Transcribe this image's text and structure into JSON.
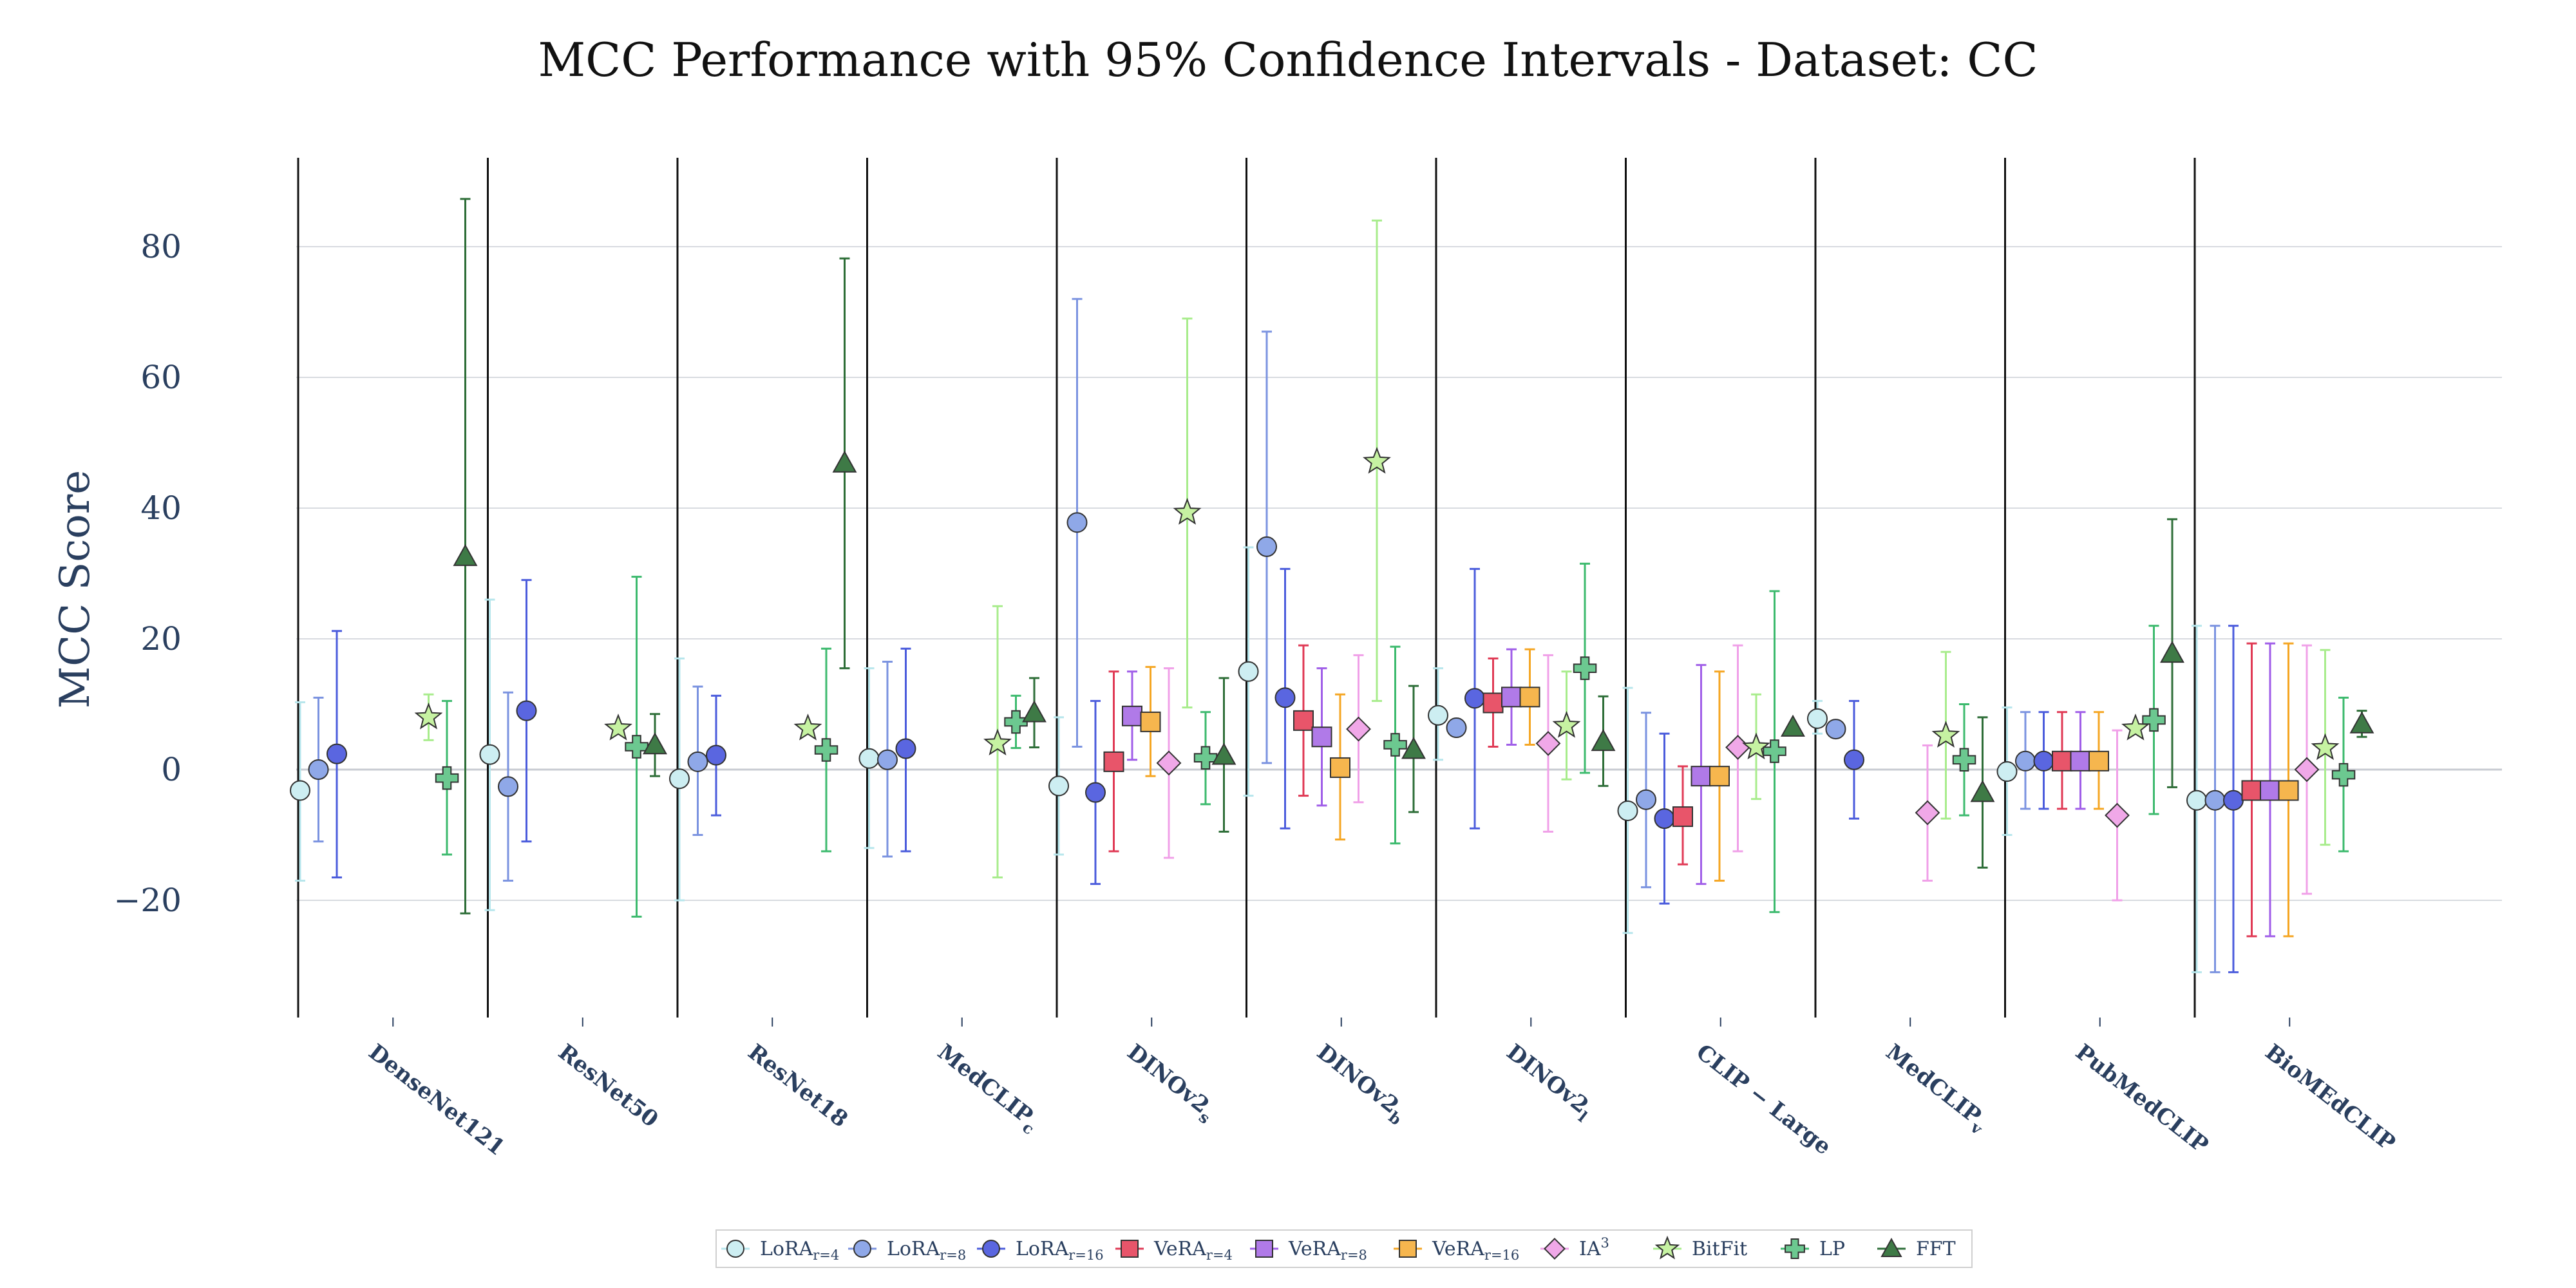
{
  "chart_data": {
    "type": "scatter",
    "title": "MCC Performance with 95% Confidence Intervals - Dataset: CC",
    "xlabel": "",
    "ylabel": "MCC Score",
    "ylim": [
      -38,
      94
    ],
    "yticks": [
      -20,
      0,
      20,
      40,
      60,
      80
    ],
    "ytick_labels": [
      "−20",
      "0",
      "20",
      "40",
      "60",
      "80"
    ],
    "grid": true,
    "legend_position": "bottom",
    "categories": [
      "DenseNet121",
      "ResNet50",
      "ResNet18",
      "MedCLIP",
      "DINOv2",
      "DINOv2",
      "DINOv2",
      "CLIP − Large",
      "MedCLIP",
      "PubMedCLIP",
      "BioMEdCLIP"
    ],
    "category_subscripts": [
      "",
      "",
      "",
      "c",
      "s",
      "b",
      "l",
      "",
      "v",
      "",
      ""
    ],
    "series": [
      {
        "name": "LoRA",
        "sub": "r=4",
        "sup": "",
        "color": "#cdeef2",
        "edge": "#333333",
        "ci_color": "#b7e6ec",
        "marker": "circle",
        "points": [
          {
            "cat": 0,
            "value": -3.2,
            "low": -17,
            "high": 10.3
          },
          {
            "cat": 1,
            "value": 2.3,
            "low": -21.5,
            "high": 26
          },
          {
            "cat": 2,
            "value": -1.4,
            "low": -20,
            "high": 17
          },
          {
            "cat": 3,
            "value": 1.7,
            "low": -12,
            "high": 15.5
          },
          {
            "cat": 4,
            "value": -2.5,
            "low": -13,
            "high": 8
          },
          {
            "cat": 5,
            "value": 15,
            "low": -4,
            "high": 34
          },
          {
            "cat": 6,
            "value": 8.3,
            "low": 1.5,
            "high": 15.5
          },
          {
            "cat": 7,
            "value": -6.3,
            "low": -25,
            "high": 12.5
          },
          {
            "cat": 8,
            "value": 7.8,
            "low": 5.5,
            "high": 10.5
          },
          {
            "cat": 9,
            "value": -0.3,
            "low": -10,
            "high": 9.5
          },
          {
            "cat": 10,
            "value": -4.7,
            "low": -31,
            "high": 22
          }
        ]
      },
      {
        "name": "LoRA",
        "sub": "r=8",
        "sup": "",
        "color": "#8fa8e8",
        "edge": "#333333",
        "ci_color": "#7b93e0",
        "marker": "circle",
        "points": [
          {
            "cat": 0,
            "value": 0,
            "low": -11,
            "high": 11
          },
          {
            "cat": 1,
            "value": -2.6,
            "low": -17,
            "high": 11.8
          },
          {
            "cat": 2,
            "value": 1.2,
            "low": -10,
            "high": 12.7
          },
          {
            "cat": 3,
            "value": 1.5,
            "low": -13.3,
            "high": 16.5
          },
          {
            "cat": 4,
            "value": 37.8,
            "low": 3.5,
            "high": 72
          },
          {
            "cat": 5,
            "value": 34.1,
            "low": 1,
            "high": 67
          },
          {
            "cat": 6,
            "value": 6.4,
            "low": 6.4,
            "high": 6.4
          },
          {
            "cat": 7,
            "value": -4.6,
            "low": -18,
            "high": 8.7
          },
          {
            "cat": 8,
            "value": 6.2,
            "low": 6.2,
            "high": 6.2
          },
          {
            "cat": 9,
            "value": 1.3,
            "low": -6,
            "high": 8.8
          },
          {
            "cat": 10,
            "value": -4.7,
            "low": -31,
            "high": 22
          }
        ]
      },
      {
        "name": "LoRA",
        "sub": "r=16",
        "sup": "",
        "color": "#5a66e0",
        "edge": "#333333",
        "ci_color": "#4b5cdc",
        "marker": "circle",
        "points": [
          {
            "cat": 0,
            "value": 2.4,
            "low": -16.5,
            "high": 21.2
          },
          {
            "cat": 1,
            "value": 9,
            "low": -11,
            "high": 29
          },
          {
            "cat": 2,
            "value": 2.2,
            "low": -7,
            "high": 11.3
          },
          {
            "cat": 3,
            "value": 3.2,
            "low": -12.5,
            "high": 18.5
          },
          {
            "cat": 4,
            "value": -3.5,
            "low": -17.5,
            "high": 10.5
          },
          {
            "cat": 5,
            "value": 11,
            "low": -9,
            "high": 30.7
          },
          {
            "cat": 6,
            "value": 10.9,
            "low": -9,
            "high": 30.7
          },
          {
            "cat": 7,
            "value": -7.5,
            "low": -20.5,
            "high": 5.5
          },
          {
            "cat": 8,
            "value": 1.5,
            "low": -7.5,
            "high": 10.5
          },
          {
            "cat": 9,
            "value": 1.3,
            "low": -6,
            "high": 8.8
          },
          {
            "cat": 10,
            "value": -4.7,
            "low": -31,
            "high": 22
          }
        ]
      },
      {
        "name": "VeRA",
        "sub": "r=4",
        "sup": "",
        "color": "#e8556a",
        "edge": "#333333",
        "ci_color": "#e03a55",
        "marker": "square",
        "points": [
          {
            "cat": 4,
            "value": 1.2,
            "low": -12.5,
            "high": 15
          },
          {
            "cat": 5,
            "value": 7.5,
            "low": -4,
            "high": 19
          },
          {
            "cat": 6,
            "value": 10.2,
            "low": 3.5,
            "high": 17
          },
          {
            "cat": 7,
            "value": -7.2,
            "low": -14.5,
            "high": 0.5
          },
          {
            "cat": 9,
            "value": 1.3,
            "low": -6,
            "high": 8.8
          },
          {
            "cat": 10,
            "value": -3.2,
            "low": -25.5,
            "high": 19.3
          }
        ]
      },
      {
        "name": "VeRA",
        "sub": "r=8",
        "sup": "",
        "color": "#b07ae8",
        "edge": "#333333",
        "ci_color": "#a05ee8",
        "marker": "square",
        "points": [
          {
            "cat": 4,
            "value": 8.2,
            "low": 1.5,
            "high": 15
          },
          {
            "cat": 5,
            "value": 5,
            "low": -5.5,
            "high": 15.5
          },
          {
            "cat": 6,
            "value": 11.1,
            "low": 3.8,
            "high": 18.4
          },
          {
            "cat": 7,
            "value": -1,
            "low": -17.5,
            "high": 16
          },
          {
            "cat": 9,
            "value": 1.3,
            "low": -6,
            "high": 8.8
          },
          {
            "cat": 10,
            "value": -3.2,
            "low": -25.5,
            "high": 19.3
          }
        ]
      },
      {
        "name": "VeRA",
        "sub": "r=16",
        "sup": "",
        "color": "#f6b64e",
        "edge": "#333333",
        "ci_color": "#f5a623",
        "marker": "square",
        "points": [
          {
            "cat": 4,
            "value": 7.3,
            "low": -1,
            "high": 15.7
          },
          {
            "cat": 5,
            "value": 0.3,
            "low": -10.7,
            "high": 11.5
          },
          {
            "cat": 6,
            "value": 11.1,
            "low": 3.8,
            "high": 18.4
          },
          {
            "cat": 7,
            "value": -1,
            "low": -17,
            "high": 15
          },
          {
            "cat": 9,
            "value": 1.3,
            "low": -6,
            "high": 8.8
          },
          {
            "cat": 10,
            "value": -3.2,
            "low": -25.5,
            "high": 19.3
          }
        ]
      },
      {
        "name": "IA",
        "sub": "",
        "sup": "3",
        "color": "#f0a8e8",
        "edge": "#333333",
        "ci_color": "#f0a0e8",
        "marker": "diamond",
        "points": [
          {
            "cat": 4,
            "value": 1,
            "low": -13.5,
            "high": 15.5
          },
          {
            "cat": 5,
            "value": 6.2,
            "low": -5,
            "high": 17.5
          },
          {
            "cat": 6,
            "value": 4,
            "low": -9.5,
            "high": 17.5
          },
          {
            "cat": 7,
            "value": 3.4,
            "low": -12.5,
            "high": 19
          },
          {
            "cat": 8,
            "value": -6.6,
            "low": -17,
            "high": 3.7
          },
          {
            "cat": 9,
            "value": -7,
            "low": -20,
            "high": 6
          },
          {
            "cat": 10,
            "value": 0,
            "low": -19,
            "high": 19
          }
        ]
      },
      {
        "name": "BitFit",
        "sub": "",
        "sup": "",
        "color": "#c6f2a2",
        "edge": "#333333",
        "ci_color": "#a8ec8c",
        "marker": "star",
        "points": [
          {
            "cat": 0,
            "value": 8,
            "low": 4.5,
            "high": 11.5
          },
          {
            "cat": 1,
            "value": 6.3,
            "low": 6.3,
            "high": 6.3
          },
          {
            "cat": 2,
            "value": 6.3,
            "low": 6.3,
            "high": 6.3
          },
          {
            "cat": 3,
            "value": 4,
            "low": -16.5,
            "high": 25
          },
          {
            "cat": 4,
            "value": 39.3,
            "low": 9.5,
            "high": 69
          },
          {
            "cat": 5,
            "value": 47.1,
            "low": 10.5,
            "high": 84
          },
          {
            "cat": 6,
            "value": 6.7,
            "low": -1.5,
            "high": 15
          },
          {
            "cat": 7,
            "value": 3.4,
            "low": -4.5,
            "high": 11.5
          },
          {
            "cat": 8,
            "value": 5.2,
            "low": -7.5,
            "high": 18
          },
          {
            "cat": 9,
            "value": 6.3,
            "low": 6.3,
            "high": 6.3
          },
          {
            "cat": 10,
            "value": 3.3,
            "low": -11.5,
            "high": 18.3
          }
        ]
      },
      {
        "name": "LP",
        "sub": "",
        "sup": "",
        "color": "#6cc890",
        "edge": "#333333",
        "ci_color": "#3dba6e",
        "marker": "cross",
        "points": [
          {
            "cat": 0,
            "value": -1.3,
            "low": -13,
            "high": 10.5
          },
          {
            "cat": 1,
            "value": 3.5,
            "low": -22.5,
            "high": 29.5
          },
          {
            "cat": 2,
            "value": 3,
            "low": -12.5,
            "high": 18.5
          },
          {
            "cat": 3,
            "value": 7.3,
            "low": 3.3,
            "high": 11.3
          },
          {
            "cat": 4,
            "value": 1.8,
            "low": -5.3,
            "high": 8.8
          },
          {
            "cat": 5,
            "value": 3.8,
            "low": -11.3,
            "high": 18.8
          },
          {
            "cat": 6,
            "value": 15.5,
            "low": -0.5,
            "high": 31.5
          },
          {
            "cat": 7,
            "value": 2.8,
            "low": -21.8,
            "high": 27.3
          },
          {
            "cat": 8,
            "value": 1.5,
            "low": -7,
            "high": 10
          },
          {
            "cat": 9,
            "value": 7.6,
            "low": -6.8,
            "high": 22
          },
          {
            "cat": 10,
            "value": -0.8,
            "low": -12.5,
            "high": 11
          }
        ]
      },
      {
        "name": "FFT",
        "sub": "",
        "sup": "",
        "color": "#3e7a46",
        "edge": "#333333",
        "ci_color": "#2e6e38",
        "marker": "triangle",
        "points": [
          {
            "cat": 0,
            "value": 32.6,
            "low": -22,
            "high": 87.3
          },
          {
            "cat": 1,
            "value": 3.8,
            "low": -1,
            "high": 8.5
          },
          {
            "cat": 2,
            "value": 46.9,
            "low": 15.5,
            "high": 78.2
          },
          {
            "cat": 3,
            "value": 8.7,
            "low": 3.4,
            "high": 14
          },
          {
            "cat": 4,
            "value": 2.2,
            "low": -9.5,
            "high": 14
          },
          {
            "cat": 5,
            "value": 3.1,
            "low": -6.5,
            "high": 12.8
          },
          {
            "cat": 6,
            "value": 4.3,
            "low": -2.5,
            "high": 11.2
          },
          {
            "cat": 7,
            "value": 6.5,
            "low": 6.5,
            "high": 6.5
          },
          {
            "cat": 8,
            "value": -3.5,
            "low": -15,
            "high": 8
          },
          {
            "cat": 9,
            "value": 17.8,
            "low": -2.7,
            "high": 38.3
          },
          {
            "cat": 10,
            "value": 7,
            "low": 5,
            "high": 9
          }
        ]
      }
    ]
  }
}
